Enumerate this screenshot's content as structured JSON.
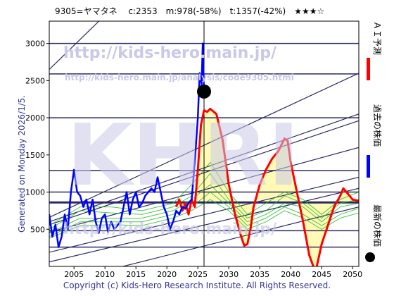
{
  "header": {
    "text": "9305=ヤマタネ　 c:2353　m:978(-58%)　t:1357(-42%)　★★★☆"
  },
  "watermarks": {
    "url_large": "http://kids-hero.main.jp/",
    "url_small": "http://kids-hero.main.jp/analysis/code9305.html",
    "logo": "KHRI",
    "url_bottom": "http://kids-hero.main.jp/"
  },
  "side_label": "Generated on Monday 2026/1/5.",
  "footer": "Copyright (c) Kids-Hero Research Institute. All Rights Reserved.",
  "legend": {
    "ai": "ＡＩ予測",
    "past": "過去の株価",
    "latest": "最新の株価"
  },
  "colors": {
    "ai": "#ff0000",
    "past": "#0000ff",
    "latest": "#000000",
    "band": "#22bb22",
    "hline": "#2a2a66",
    "fill": "#fff9a8",
    "watermark": "#c8c8e8"
  },
  "chart_data": {
    "type": "line",
    "xlim": [
      2001,
      2051
    ],
    "ylim": [
      0,
      3300
    ],
    "x_ticks": [
      2005,
      2010,
      2015,
      2020,
      2025,
      2030,
      2035,
      2040,
      2045,
      2050
    ],
    "y_ticks": [
      500,
      1000,
      1500,
      2000,
      2500,
      3000
    ],
    "horizontal_levels": [
      260,
      480,
      860,
      1000,
      1290,
      2000,
      2590,
      3000
    ],
    "trend_lines": [
      {
        "x": [
          2001,
          2051
        ],
        "y": [
          2650,
          6700
        ]
      },
      {
        "x": [
          2001,
          2051
        ],
        "y": [
          660,
          2600
        ]
      },
      {
        "x": [
          2001,
          2051
        ],
        "y": [
          600,
          2050
        ]
      },
      {
        "x": [
          2001,
          2051
        ],
        "y": [
          560,
          1960
        ]
      },
      {
        "x": [
          2001,
          2051
        ],
        "y": [
          460,
          1600
        ]
      },
      {
        "x": [
          2001,
          2051
        ],
        "y": [
          190,
          1200
        ]
      },
      {
        "x": [
          2001,
          2051
        ],
        "y": [
          60,
          1050
        ]
      },
      {
        "x": [
          2001,
          2051
        ],
        "y": [
          -250,
          800
        ]
      }
    ],
    "current_marker": {
      "x": 2026,
      "y": 2353
    },
    "series": [
      {
        "name": "過去の株価",
        "x": [
          2001.0,
          2001.5,
          2002.0,
          2002.5,
          2003.0,
          2003.5,
          2004.0,
          2004.5,
          2005.0,
          2005.5,
          2006.0,
          2006.5,
          2007.0,
          2007.5,
          2008.0,
          2008.5,
          2009.0,
          2009.5,
          2010.0,
          2010.5,
          2011.0,
          2011.5,
          2012.0,
          2012.5,
          2013.0,
          2013.5,
          2014.0,
          2014.5,
          2015.0,
          2015.5,
          2016.0,
          2016.5,
          2017.0,
          2017.5,
          2018.0,
          2018.5,
          2019.0,
          2019.5,
          2020.0,
          2020.5,
          2021.0,
          2021.5,
          2022.0,
          2022.5,
          2023.0,
          2023.5,
          2024.0,
          2024.5,
          2025.0,
          2025.3,
          2025.6,
          2025.8,
          2026.0
        ],
        "values": [
          700,
          400,
          560,
          260,
          400,
          700,
          500,
          1000,
          1300,
          1000,
          950,
          800,
          900,
          700,
          900,
          600,
          450,
          650,
          700,
          460,
          600,
          500,
          550,
          600,
          800,
          1000,
          700,
          900,
          1000,
          800,
          850,
          950,
          1000,
          1050,
          1000,
          1200,
          1000,
          800,
          700,
          500,
          600,
          750,
          700,
          800,
          780,
          850,
          900,
          1400,
          2000,
          2600,
          2450,
          3000,
          2353
        ]
      },
      {
        "name": "ＡＩ予測",
        "x": [
          2021.5,
          2022.0,
          2022.5,
          2023.0,
          2023.5,
          2024.0,
          2024.5,
          2025.0,
          2025.5,
          2026.0,
          2026.5,
          2027.0,
          2028.0,
          2029.0,
          2029.5,
          2030.0,
          2030.5,
          2031.0,
          2032.0,
          2032.5,
          2033.0,
          2033.5,
          2034.0,
          2035.0,
          2036.0,
          2037.0,
          2038.0,
          2039.0,
          2039.5,
          2040.0,
          2041.0,
          2042.0,
          2043.0,
          2044.0,
          2045.0,
          2046.0,
          2047.0,
          2048.0,
          2048.5,
          2049.0,
          2050.0,
          2051.0
        ],
        "values": [
          800,
          900,
          750,
          850,
          700,
          900,
          800,
          1300,
          1900,
          2100,
          2080,
          2120,
          2050,
          1700,
          1400,
          1100,
          900,
          700,
          400,
          280,
          300,
          500,
          800,
          1100,
          1300,
          1450,
          1550,
          1720,
          1690,
          1400,
          1000,
          600,
          150,
          -80,
          300,
          550,
          800,
          950,
          1050,
          1000,
          900,
          880
        ]
      },
      {
        "name": "band1",
        "x": [
          2001,
          2006,
          2011,
          2016,
          2021,
          2024,
          2027,
          2030,
          2033,
          2036,
          2039,
          2042,
          2045,
          2048,
          2051
        ],
        "values": [
          550,
          800,
          800,
          750,
          850,
          1100,
          1400,
          1000,
          700,
          850,
          1000,
          900,
          700,
          900,
          1000
        ]
      },
      {
        "name": "band2",
        "x": [
          2001,
          2006,
          2011,
          2016,
          2021,
          2024,
          2027,
          2030,
          2033,
          2036,
          2039,
          2042,
          2045,
          2048,
          2051
        ],
        "values": [
          500,
          750,
          720,
          700,
          800,
          950,
          1250,
          900,
          650,
          750,
          950,
          850,
          650,
          850,
          900
        ]
      },
      {
        "name": "band3",
        "x": [
          2001,
          2006,
          2011,
          2016,
          2021,
          2024,
          2027,
          2030,
          2033,
          2036,
          2039,
          2042,
          2045,
          2048,
          2051
        ],
        "values": [
          450,
          650,
          650,
          650,
          750,
          900,
          1100,
          850,
          600,
          700,
          850,
          800,
          600,
          800,
          850
        ]
      },
      {
        "name": "band4",
        "x": [
          2001,
          2006,
          2011,
          2016,
          2021,
          2024,
          2027,
          2030,
          2033,
          2036,
          2039,
          2042,
          2045,
          2048,
          2051
        ],
        "values": [
          400,
          600,
          600,
          600,
          700,
          800,
          1000,
          800,
          550,
          650,
          800,
          700,
          550,
          700,
          780
        ]
      },
      {
        "name": "band5",
        "x": [
          2001,
          2006,
          2011,
          2016,
          2021,
          2024,
          2027,
          2030,
          2033,
          2036,
          2039,
          2042,
          2045,
          2048,
          2051
        ],
        "values": [
          380,
          550,
          560,
          550,
          650,
          750,
          900,
          750,
          500,
          600,
          750,
          650,
          500,
          650,
          720
        ]
      }
    ]
  }
}
